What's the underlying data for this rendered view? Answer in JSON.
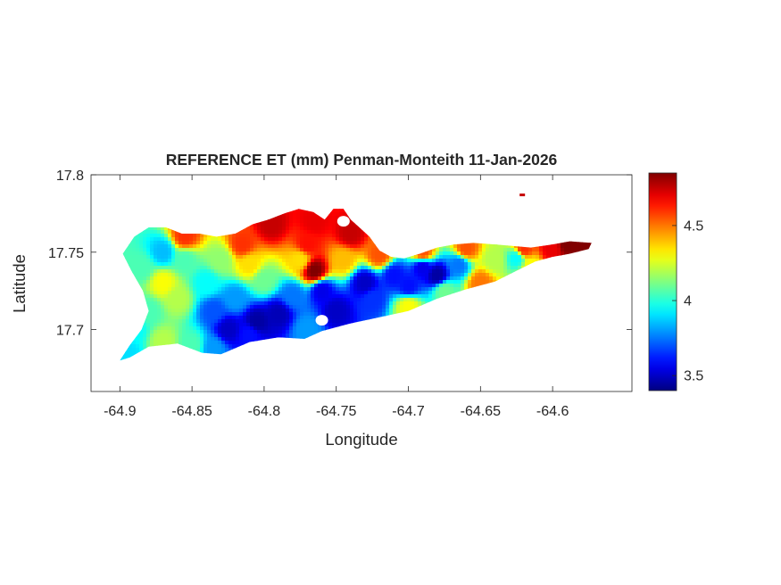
{
  "chart_data": {
    "type": "heatmap",
    "title": "REFERENCE ET (mm) Penman-Monteith 11-Jan-2026",
    "xlabel": "Longitude",
    "ylabel": "Latitude",
    "xlim": [
      -64.92,
      -64.545
    ],
    "ylim": [
      17.66,
      17.8
    ],
    "x_ticks": [
      -64.9,
      -64.85,
      -64.8,
      -64.75,
      -64.7,
      -64.65,
      -64.6
    ],
    "x_tick_labels": [
      "-64.9",
      "-64.85",
      "-64.8",
      "-64.75",
      "-64.7",
      "-64.65",
      "-64.6"
    ],
    "y_ticks": [
      17.7,
      17.75,
      17.8
    ],
    "y_tick_labels": [
      "17.7",
      "17.75",
      "17.8"
    ],
    "colorbar": {
      "colormap": "jet",
      "range": [
        3.4,
        4.85
      ],
      "ticks": [
        3.5,
        4,
        4.5
      ],
      "tick_labels": [
        "3.5",
        "4",
        "4.5"
      ]
    },
    "island_outline": [
      [
        -64.9,
        17.68
      ],
      [
        -64.893,
        17.69
      ],
      [
        -64.885,
        17.7
      ],
      [
        -64.88,
        17.712
      ],
      [
        -64.884,
        17.725
      ],
      [
        -64.892,
        17.738
      ],
      [
        -64.898,
        17.749
      ],
      [
        -64.89,
        17.76
      ],
      [
        -64.88,
        17.766
      ],
      [
        -64.868,
        17.766
      ],
      [
        -64.857,
        17.762
      ],
      [
        -64.845,
        17.762
      ],
      [
        -64.833,
        17.76
      ],
      [
        -64.82,
        17.762
      ],
      [
        -64.808,
        17.768
      ],
      [
        -64.797,
        17.771
      ],
      [
        -64.786,
        17.775
      ],
      [
        -64.776,
        17.778
      ],
      [
        -64.766,
        17.776
      ],
      [
        -64.758,
        17.771
      ],
      [
        -64.752,
        17.778
      ],
      [
        -64.745,
        17.778
      ],
      [
        -64.74,
        17.771
      ],
      [
        -64.734,
        17.766
      ],
      [
        -64.727,
        17.76
      ],
      [
        -64.72,
        17.751
      ],
      [
        -64.712,
        17.747
      ],
      [
        -64.703,
        17.746
      ],
      [
        -64.692,
        17.749
      ],
      [
        -64.68,
        17.753
      ],
      [
        -64.668,
        17.755
      ],
      [
        -64.655,
        17.756
      ],
      [
        -64.64,
        17.755
      ],
      [
        -64.628,
        17.754
      ],
      [
        -64.615,
        17.753
      ],
      [
        -64.6,
        17.755
      ],
      [
        -64.588,
        17.757
      ],
      [
        -64.573,
        17.756
      ],
      [
        -64.575,
        17.752
      ],
      [
        -64.588,
        17.749
      ],
      [
        -64.6,
        17.747
      ],
      [
        -64.612,
        17.744
      ],
      [
        -64.625,
        17.738
      ],
      [
        -64.64,
        17.731
      ],
      [
        -64.66,
        17.726
      ],
      [
        -64.68,
        17.72
      ],
      [
        -64.7,
        17.712
      ],
      [
        -64.72,
        17.708
      ],
      [
        -64.74,
        17.704
      ],
      [
        -64.76,
        17.699
      ],
      [
        -64.772,
        17.694
      ],
      [
        -64.79,
        17.695
      ],
      [
        -64.81,
        17.692
      ],
      [
        -64.83,
        17.684
      ],
      [
        -64.843,
        17.685
      ],
      [
        -64.86,
        17.691
      ],
      [
        -64.88,
        17.689
      ],
      [
        -64.893,
        17.682
      ],
      [
        -64.9,
        17.68
      ]
    ],
    "islet": [
      -64.621,
      17.787
    ],
    "inlet_holes": [
      [
        -64.76,
        17.706
      ],
      [
        -64.745,
        17.77
      ]
    ],
    "field_samples": [
      [
        -64.89,
        17.7,
        3.95
      ],
      [
        -64.88,
        17.712,
        4.05
      ],
      [
        -64.885,
        17.74,
        4.05
      ],
      [
        -64.87,
        17.75,
        3.85
      ],
      [
        -64.87,
        17.73,
        4.3
      ],
      [
        -64.86,
        17.72,
        4.2
      ],
      [
        -64.855,
        17.745,
        4.05
      ],
      [
        -64.855,
        17.76,
        4.6
      ],
      [
        -64.84,
        17.73,
        3.95
      ],
      [
        -64.835,
        17.712,
        3.7
      ],
      [
        -64.825,
        17.7,
        3.5
      ],
      [
        -64.83,
        17.745,
        4.15
      ],
      [
        -64.815,
        17.755,
        4.6
      ],
      [
        -64.82,
        17.72,
        3.8
      ],
      [
        -64.81,
        17.742,
        4.35
      ],
      [
        -64.805,
        17.705,
        3.45
      ],
      [
        -64.8,
        17.732,
        4.1
      ],
      [
        -64.795,
        17.768,
        4.75
      ],
      [
        -64.79,
        17.71,
        3.48
      ],
      [
        -64.78,
        17.722,
        3.75
      ],
      [
        -64.775,
        17.745,
        4.35
      ],
      [
        -64.77,
        17.755,
        4.65
      ],
      [
        -64.765,
        17.738,
        4.85
      ],
      [
        -64.765,
        17.77,
        4.7
      ],
      [
        -64.76,
        17.725,
        3.55
      ],
      [
        -64.75,
        17.712,
        3.5
      ],
      [
        -64.745,
        17.745,
        4.4
      ],
      [
        -64.74,
        17.762,
        4.75
      ],
      [
        -64.73,
        17.73,
        3.5
      ],
      [
        -64.725,
        17.72,
        3.65
      ],
      [
        -64.72,
        17.748,
        4.55
      ],
      [
        -64.71,
        17.735,
        3.6
      ],
      [
        -64.7,
        17.728,
        3.6
      ],
      [
        -64.7,
        17.715,
        4.3
      ],
      [
        -64.69,
        17.74,
        3.55
      ],
      [
        -64.68,
        17.735,
        3.45
      ],
      [
        -64.69,
        17.75,
        4.55
      ],
      [
        -64.675,
        17.725,
        4.1
      ],
      [
        -64.665,
        17.742,
        3.75
      ],
      [
        -64.66,
        17.752,
        4.55
      ],
      [
        -64.65,
        17.73,
        4.5
      ],
      [
        -64.64,
        17.745,
        4.2
      ],
      [
        -64.625,
        17.746,
        3.95
      ],
      [
        -64.615,
        17.74,
        4.3
      ],
      [
        -64.62,
        17.752,
        4.6
      ],
      [
        -64.6,
        17.752,
        4.7
      ],
      [
        -64.59,
        17.755,
        4.85
      ],
      [
        -64.578,
        17.755,
        4.85
      ],
      [
        -64.895,
        17.685,
        3.9
      ],
      [
        -64.87,
        17.692,
        4.2
      ],
      [
        -64.85,
        17.69,
        4.05
      ],
      [
        -64.835,
        17.688,
        3.8
      ],
      [
        -64.81,
        17.697,
        3.6
      ],
      [
        -64.77,
        17.7,
        3.8
      ]
    ]
  }
}
